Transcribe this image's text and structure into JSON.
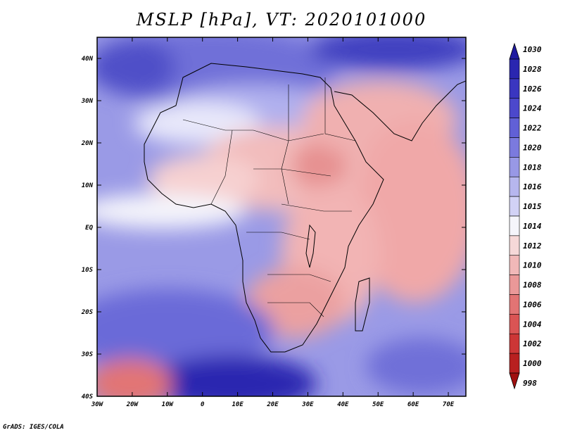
{
  "title": "MSLP [hPa], VT: 2020101000",
  "credit": "GrADS: IGES/COLA",
  "map": {
    "field": "Mean sea level pressure",
    "units": "hPa",
    "valid_time": "2020101000",
    "region": "Africa",
    "lon_range": [
      -30,
      75
    ],
    "lat_range": [
      -40,
      45
    ],
    "lon_ticks": [
      "30W",
      "20W",
      "10W",
      "0",
      "10E",
      "20E",
      "30E",
      "40E",
      "50E",
      "60E",
      "70E"
    ],
    "lat_ticks": [
      "40N",
      "30N",
      "20N",
      "10N",
      "EQ",
      "10S",
      "20S",
      "30S",
      "40S"
    ]
  },
  "colorbar": {
    "levels": [
      "1030",
      "1028",
      "1026",
      "1024",
      "1022",
      "1020",
      "1018",
      "1016",
      "1015",
      "1014",
      "1012",
      "1010",
      "1008",
      "1006",
      "1004",
      "1002",
      "1000",
      "998"
    ],
    "colors": [
      "#1f1aa0",
      "#2a26b0",
      "#3a36c0",
      "#4c48cc",
      "#6160d6",
      "#7b7ade",
      "#9898e6",
      "#b6b6ee",
      "#d2d2f6",
      "#f5f5fb",
      "#f6d8d8",
      "#f1b8b8",
      "#ea9898",
      "#e27474",
      "#da5454",
      "#cc3636",
      "#b82020",
      "#a01010"
    ]
  }
}
